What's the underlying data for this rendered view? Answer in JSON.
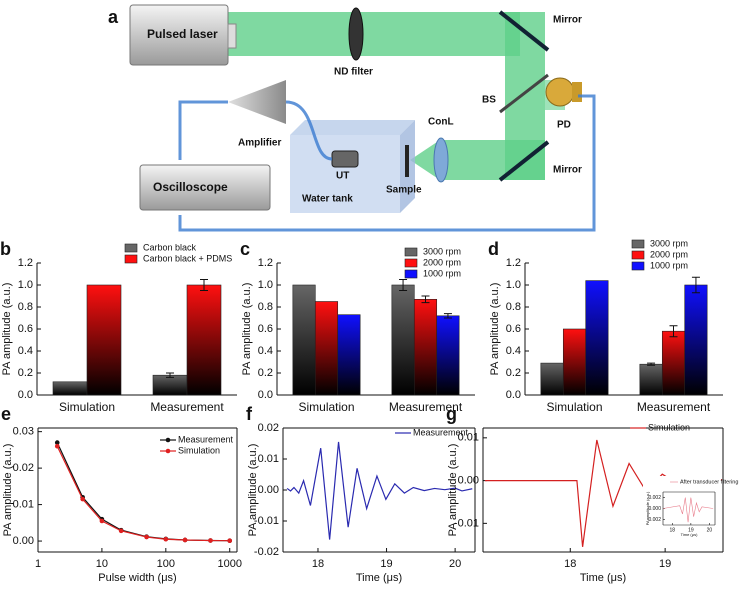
{
  "diagram": {
    "panel": "a",
    "labels": [
      "Pulsed laser",
      "ND filter",
      "Mirror",
      "BS",
      "PD",
      "ConL",
      "Amplifier",
      "UT",
      "Sample",
      "Water tank",
      "Oscilloscope",
      "Mirror"
    ]
  },
  "chart_data": [
    {
      "type": "bar",
      "panel": "b",
      "ylabel": "PA amplitude (a.u.)",
      "categories": [
        "Simulation",
        "Measurement"
      ],
      "series": [
        {
          "name": "Carbon black",
          "color": "#666666",
          "values": [
            0.12,
            0.18
          ],
          "errors": [
            null,
            0.02
          ]
        },
        {
          "name": "Carbon black + PDMS",
          "color": "#ff1010",
          "values": [
            1.0,
            1.0
          ],
          "errors": [
            null,
            0.05
          ]
        }
      ],
      "ylim": [
        0,
        1.2
      ],
      "yticks": [
        {
          "value": 0,
          "label": "0.0"
        },
        0.2,
        0.4,
        0.6,
        0.8,
        {
          "value": 1,
          "label": "1.0"
        },
        1.2
      ]
    },
    {
      "type": "bar",
      "panel": "c",
      "ylabel": "PA amplitude (a.u.)",
      "categories": [
        "Simulation",
        "Measurement"
      ],
      "series": [
        {
          "name": "3000 rpm",
          "color": "#666666",
          "values": [
            1.0,
            1.0
          ],
          "errors": [
            null,
            0.05
          ]
        },
        {
          "name": "2000 rpm",
          "color": "#ff1010",
          "values": [
            0.85,
            0.87
          ],
          "errors": [
            null,
            0.03
          ]
        },
        {
          "name": "1000 rpm",
          "color": "#1010ff",
          "values": [
            0.73,
            0.72
          ],
          "errors": [
            null,
            0.02
          ]
        }
      ],
      "ylim": [
        0,
        1.2
      ],
      "yticks": [
        {
          "value": 0,
          "label": "0.0"
        },
        0.2,
        0.4,
        0.6,
        0.8,
        {
          "value": 1,
          "label": "1.0"
        },
        1.2
      ]
    },
    {
      "type": "bar",
      "panel": "d",
      "ylabel": "PA amplitude (a.u.)",
      "categories": [
        "Simulation",
        "Measurement"
      ],
      "series": [
        {
          "name": "3000 rpm",
          "color": "#666666",
          "values": [
            0.29,
            0.28
          ],
          "errors": [
            null,
            0.01
          ]
        },
        {
          "name": "2000 rpm",
          "color": "#ff1010",
          "values": [
            0.6,
            0.58
          ],
          "errors": [
            null,
            0.05
          ]
        },
        {
          "name": "1000 rpm",
          "color": "#1010ff",
          "values": [
            1.04,
            1.0
          ],
          "errors": [
            null,
            0.07
          ]
        }
      ],
      "ylim": [
        0,
        1.2
      ],
      "yticks": [
        {
          "value": 0,
          "label": "0.0"
        },
        0.2,
        0.4,
        0.6,
        0.8,
        {
          "value": 1,
          "label": "1.0"
        },
        1.2
      ]
    },
    {
      "type": "line",
      "panel": "e",
      "ylabel": "PA amplitude (a.u.)",
      "xlabel": "Pulse width (μs)",
      "xscale": "log",
      "markers": true,
      "x": [
        2,
        5,
        10,
        20,
        50,
        100,
        200,
        500,
        1000
      ],
      "series": [
        {
          "name": "Measurement",
          "color": "#111111",
          "values": [
            0.027,
            0.012,
            0.006,
            0.003,
            0.0012,
            0.0006,
            0.0003,
            0.00015,
            0.0001
          ]
        },
        {
          "name": "Simulation",
          "color": "#e02020",
          "values": [
            0.026,
            0.0115,
            0.0055,
            0.0028,
            0.0011,
            0.0005,
            0.0003,
            0.00014,
            0.0001
          ]
        }
      ],
      "xlim": [
        1,
        1300
      ],
      "xticks": [
        1,
        10,
        100,
        1000
      ],
      "ylim": [
        -0.003,
        0.031
      ],
      "yticks": [
        {
          "value": 0,
          "label": "0.00"
        },
        0.01,
        0.02,
        0.03
      ]
    },
    {
      "type": "line",
      "panel": "f",
      "ylabel": "PA amplitude (a.u.)",
      "xlabel": "Time (μs)",
      "x": [
        17.55,
        17.6,
        17.65,
        17.72,
        17.79,
        17.89,
        18.04,
        18.17,
        18.3,
        18.44,
        18.57,
        18.71,
        18.86,
        18.99,
        19.12,
        19.26,
        19.39,
        19.55,
        19.7,
        19.85,
        20.0,
        20.1,
        20.25
      ],
      "series": [
        {
          "name": "Measurement",
          "color": "#2a2ab0",
          "values": [
            0.0005,
            -0.0003,
            0.0008,
            -0.001,
            0.003,
            -0.005,
            0.0135,
            -0.016,
            0.0155,
            -0.012,
            0.007,
            -0.006,
            0.0045,
            -0.003,
            0.002,
            -0.001,
            0.0008,
            -0.0002,
            0.0005,
            0.0001,
            0.0006,
            -0.0003,
            0.0004
          ]
        }
      ],
      "xlim": [
        17.49,
        20.29
      ],
      "xticks": [
        18,
        19,
        20
      ],
      "ylim": [
        -0.02,
        0.02
      ],
      "yticks": [
        -0.02,
        -0.01,
        {
          "value": 0,
          "label": "0.00"
        },
        0.01,
        0.02
      ]
    },
    {
      "type": "line",
      "panel": "g",
      "ylabel": "PA amplitude (a.u.)",
      "xlabel": "Time (μs)",
      "x": [
        17.1,
        18.07,
        18.13,
        18.28,
        18.45,
        18.62,
        18.8,
        18.97,
        19.15,
        19.33,
        19.5,
        19.6
      ],
      "series": [
        {
          "name": "Simulation",
          "color": "#d42020",
          "values": [
            0,
            0,
            -0.0155,
            0.0095,
            -0.006,
            0.004,
            -0.0025,
            0.0015,
            -0.001,
            0.0008,
            0.0003,
            0.0002
          ]
        }
      ],
      "xlim": [
        17.08,
        19.61
      ],
      "xticks": [
        18,
        19
      ],
      "ylim": [
        -0.0167,
        0.0123
      ],
      "yticks": [
        -0.01,
        {
          "value": 0,
          "label": "0.00"
        },
        0.01
      ]
    },
    {
      "type": "line",
      "ylabel": "PA amplitude (a.u.)",
      "xlabel": "Time (μs)",
      "x": [
        17.5,
        18.4,
        18.55,
        18.7,
        18.85,
        19.0,
        19.15,
        19.3,
        19.45,
        19.6,
        20.2
      ],
      "series": [
        {
          "name": "After transducer filtering",
          "color": "#e87b8a",
          "values": [
            0,
            0.0005,
            -0.001,
            0.002,
            -0.0025,
            0.002,
            -0.0015,
            0.001,
            -0.0006,
            0.0003,
            0
          ]
        }
      ],
      "xlim": [
        17.5,
        20.3
      ],
      "xticks": [
        18,
        19,
        20
      ],
      "ylim": [
        -0.003,
        0.003
      ],
      "yticks": [
        -0.002,
        {
          "value": 0,
          "label": "0.000"
        },
        0.002
      ]
    }
  ]
}
